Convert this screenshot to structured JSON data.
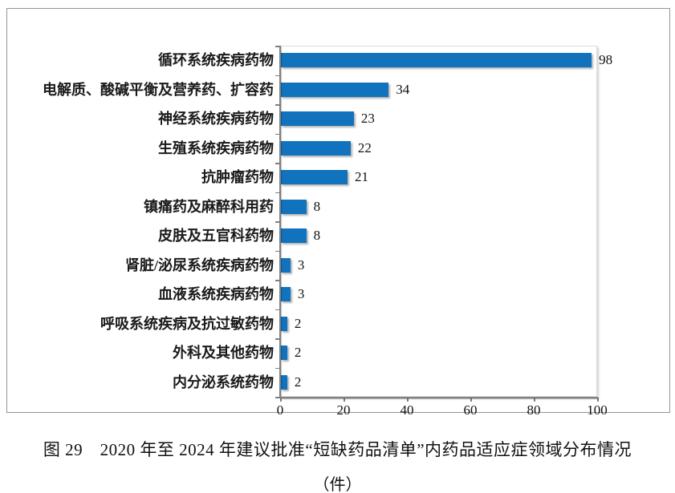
{
  "figure": {
    "caption_line1": "图 29　2020 年至 2024 年建议批准“短缺药品清单”内药品适应症领域分布情况",
    "caption_line2": "（件）"
  },
  "chart_data": {
    "type": "bar",
    "orientation": "horizontal",
    "title": "",
    "xlabel": "",
    "ylabel": "",
    "categories": [
      "循环系统疾病药物",
      "电解质、酸碱平衡及营养药、扩容药",
      "神经系统疾病药物",
      "生殖系统疾病药物",
      "抗肿瘤药物",
      "镇痛药及麻醉科用药",
      "皮肤及五官科药物",
      "肾脏/泌尿系统疾病药物",
      "血液系统疾病药物",
      "呼吸系统疾病及抗过敏药物",
      "外科及其他药物",
      "内分泌系统药物"
    ],
    "values": [
      98,
      34,
      23,
      22,
      21,
      8,
      8,
      3,
      3,
      2,
      2,
      2
    ],
    "value_labels": [
      "98",
      "34",
      "23",
      "22",
      "21",
      "8",
      "8",
      "3",
      "3",
      "2",
      "2",
      "2"
    ],
    "xticks": [
      "0",
      "20",
      "40",
      "60",
      "80",
      "100"
    ],
    "xtick_values": [
      0,
      20,
      40,
      60,
      80,
      100
    ],
    "xlim": [
      0,
      100
    ],
    "grid": false,
    "legend": null,
    "bar_color": "#1173BD",
    "axis_color": "#7f7f7f"
  }
}
